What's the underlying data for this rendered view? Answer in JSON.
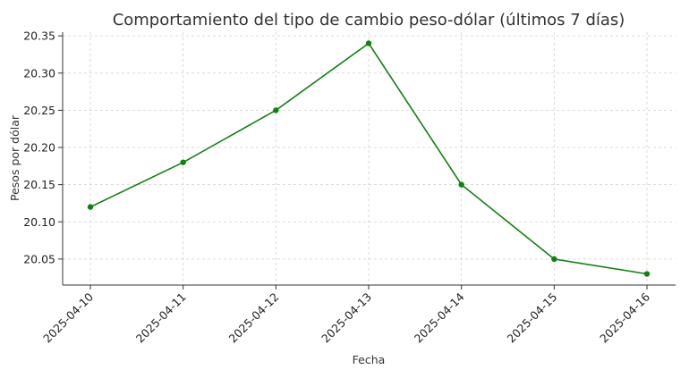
{
  "chart_data": {
    "type": "line",
    "title": "Comportamiento del tipo de cambio peso-dólar (últimos 7 días)",
    "xlabel": "Fecha",
    "ylabel": "Pesos por dólar",
    "categories": [
      "2025-04-10",
      "2025-04-11",
      "2025-04-12",
      "2025-04-13",
      "2025-04-14",
      "2025-04-15",
      "2025-04-16"
    ],
    "series": [
      {
        "values": [
          20.12,
          20.18,
          20.25,
          20.34,
          20.15,
          20.05,
          20.03
        ]
      }
    ],
    "yticks": [
      "20.05",
      "20.10",
      "20.15",
      "20.20",
      "20.25",
      "20.30",
      "20.35"
    ],
    "ylim": [
      20.015,
      20.355
    ],
    "grid": true,
    "line_color": "#128012",
    "marker": "circle"
  }
}
